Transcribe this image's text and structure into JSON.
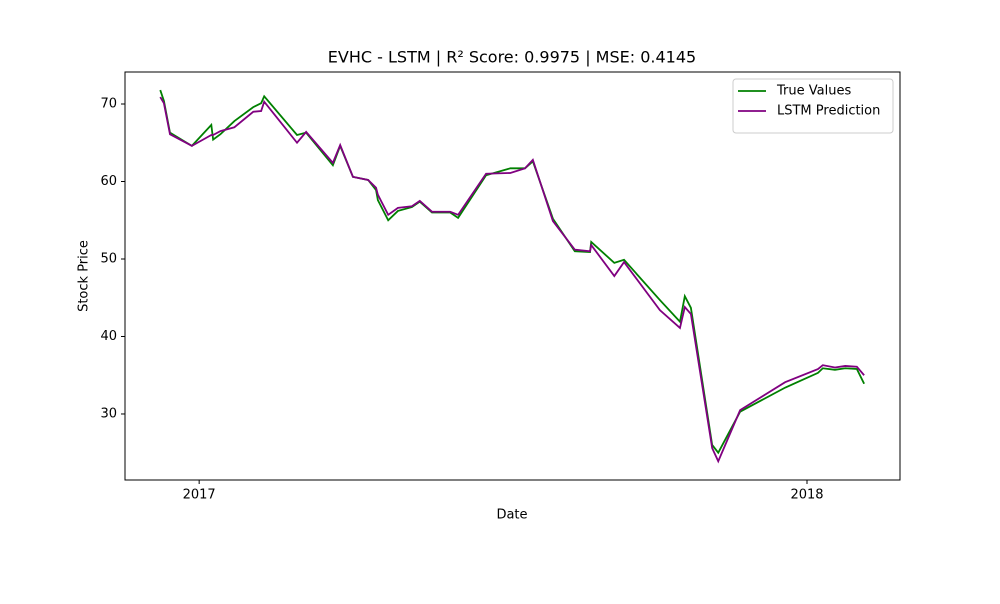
{
  "chart_data": {
    "type": "line",
    "title": "EVHC - LSTM | R² Score: 0.9975 | MSE: 0.4145",
    "x_label": "Date",
    "y_label": "Stock Price",
    "x": [
      2016.936,
      2016.942,
      2016.952,
      2016.988,
      2017.02,
      2017.023,
      2017.035,
      2017.058,
      2017.089,
      2017.102,
      2017.107,
      2017.161,
      2017.176,
      2017.22,
      2017.232,
      2017.253,
      2017.278,
      2017.291,
      2017.294,
      2017.311,
      2017.327,
      2017.35,
      2017.363,
      2017.383,
      2017.413,
      2017.426,
      2017.472,
      2017.512,
      2017.536,
      2017.549,
      2017.582,
      2017.618,
      2017.643,
      2017.645,
      2017.683,
      2017.699,
      2017.758,
      2017.791,
      2017.799,
      2017.809,
      2017.844,
      2017.854,
      2017.89,
      2017.964,
      2018.018,
      2018.026,
      2018.046,
      2018.063,
      2018.082,
      2018.094
    ],
    "series": [
      {
        "name": "True Values",
        "color": "green",
        "values": [
          71.8,
          70.4,
          66.3,
          64.6,
          67.3,
          65.4,
          66.1,
          67.8,
          69.6,
          70.1,
          71.0,
          66.0,
          66.3,
          62.1,
          64.6,
          60.6,
          60.2,
          58.9,
          57.6,
          55.0,
          56.2,
          56.7,
          57.4,
          56.0,
          56.0,
          55.3,
          60.8,
          61.7,
          61.7,
          62.6,
          55.2,
          51.0,
          50.9,
          52.2,
          49.5,
          49.9,
          44.7,
          41.9,
          45.2,
          43.7,
          26.0,
          25.0,
          30.3,
          33.4,
          35.3,
          35.9,
          35.7,
          35.9,
          35.8,
          33.9
        ]
      },
      {
        "name": "LSTM Prediction",
        "color": "purple",
        "values": [
          70.9,
          70.1,
          66.1,
          64.6,
          66.0,
          66.0,
          66.5,
          67.0,
          69.0,
          69.1,
          70.3,
          65.0,
          66.4,
          62.4,
          64.7,
          60.6,
          60.2,
          59.2,
          58.3,
          55.7,
          56.6,
          56.8,
          57.5,
          56.1,
          56.1,
          55.7,
          61.0,
          61.1,
          61.7,
          62.8,
          54.9,
          51.2,
          51.0,
          51.8,
          47.8,
          49.6,
          43.4,
          41.1,
          43.8,
          42.9,
          25.6,
          23.9,
          30.5,
          34.1,
          35.8,
          36.3,
          36.0,
          36.2,
          36.1,
          35.0
        ]
      }
    ],
    "xlim": [
      2016.878,
      2018.153
    ],
    "xticks": [
      2017,
      2018
    ],
    "ylim": [
      21.48,
      74.13
    ],
    "yticks": [
      30,
      40,
      50,
      60,
      70
    ],
    "grid": false,
    "legend": "upper right"
  }
}
